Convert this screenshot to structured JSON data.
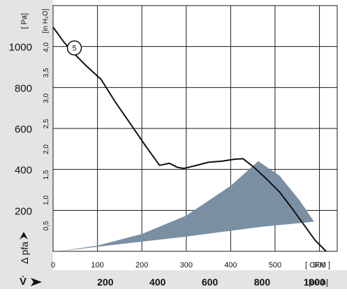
{
  "colors": {
    "background": "#ffffff",
    "side_panel": "#e3e4e6",
    "bottom_panel": "#e3e4e6",
    "grid": "#1a1a1a",
    "curve": "#111111",
    "operating_range": "#7b8fa3"
  },
  "chart_data": {
    "type": "line",
    "x_axis": {
      "unit_label": "[ CFM ]",
      "range": [
        0,
        640
      ],
      "ticks": [
        0,
        100,
        200,
        300,
        400,
        500,
        600
      ],
      "tick_labels": [
        "0",
        "100",
        "200",
        "300",
        "400",
        "500",
        "600"
      ]
    },
    "x_axis_secondary": {
      "symbol_label": "V̇",
      "unit_label": "[m³/h]",
      "ticks": [
        200,
        400,
        600,
        800,
        1000
      ],
      "tick_labels": [
        "200",
        "400",
        "600",
        "800",
        "1000"
      ]
    },
    "y_axis": {
      "unit_label": "[ Pa]",
      "symbol_label": "Δ pfa",
      "range": [
        0,
        1200
      ],
      "ticks": [
        200,
        400,
        600,
        800,
        1000
      ],
      "tick_labels": [
        "200",
        "400",
        "600",
        "800",
        "1000"
      ]
    },
    "y_axis_secondary": {
      "unit_label": "[in H₂O]",
      "ticks": [
        0.5,
        1.0,
        1.5,
        2.0,
        2.5,
        3.0,
        3.5,
        4.0
      ],
      "tick_labels": [
        "0,5",
        "1,0",
        "1,5",
        "2,0",
        "2,5",
        "3,0",
        "3,5",
        "4,0"
      ]
    },
    "grid": true,
    "series": [
      {
        "name": "5",
        "x": [
          0,
          25,
          50,
          75,
          108,
          140,
          175,
          210,
          240,
          262,
          280,
          295,
          320,
          350,
          380,
          410,
          428,
          450,
          480,
          510,
          540,
          565,
          590,
          615
        ],
        "y": [
          1095,
          1020,
          960,
          905,
          840,
          730,
          620,
          510,
          420,
          430,
          410,
          405,
          418,
          435,
          440,
          450,
          452,
          415,
          355,
          290,
          205,
          130,
          55,
          0
        ]
      }
    ],
    "operating_range": {
      "x": [
        10,
        100,
        200,
        300,
        400,
        462,
        510,
        555,
        588,
        470,
        300,
        150,
        60,
        10
      ],
      "y": [
        0,
        28,
        85,
        175,
        320,
        440,
        370,
        250,
        145,
        120,
        72,
        35,
        12,
        0
      ]
    },
    "curve_marker": {
      "label": "5",
      "x": 48,
      "y": 1000
    }
  }
}
